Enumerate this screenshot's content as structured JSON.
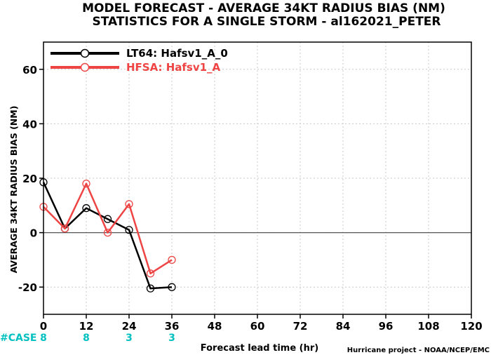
{
  "chart_data": {
    "type": "line",
    "title_line1": "MODEL FORECAST - AVERAGE 34KT RADIUS BIAS (NM)",
    "title_line2": "STATISTICS FOR A SINGLE STORM - al162021_PETER",
    "xlabel": "Forecast lead time (hr)",
    "ylabel": "AVERAGE 34KT RADIUS BIAS (NM)",
    "credit": "Hurricane project - NOAA/NCEP/EMC",
    "xlim": [
      0,
      120
    ],
    "ylim": [
      -30,
      70
    ],
    "xticks": [
      0,
      12,
      24,
      36,
      48,
      60,
      72,
      84,
      96,
      108,
      120
    ],
    "yticks": [
      -20,
      0,
      20,
      40,
      60
    ],
    "grid": true,
    "zero_line": true,
    "legend_position": "top-left",
    "case_label": "#CASE",
    "case_counts": [
      {
        "x": 0,
        "n": "8"
      },
      {
        "x": 12,
        "n": "8"
      },
      {
        "x": 24,
        "n": "3"
      },
      {
        "x": 36,
        "n": "3"
      }
    ],
    "series": [
      {
        "name": "LT64: Hafsv1_A_0",
        "color": "#000000",
        "x": [
          0,
          6,
          12,
          18,
          24,
          30,
          36
        ],
        "y": [
          18.5,
          1.5,
          9,
          5,
          1,
          -20.5,
          -20
        ]
      },
      {
        "name": "HFSA: Hafsv1_A",
        "color": "#ee4444",
        "x": [
          0,
          6,
          12,
          18,
          24,
          30,
          36
        ],
        "y": [
          9.5,
          1.5,
          18,
          0,
          10.5,
          -15,
          -10
        ]
      }
    ],
    "case_color": "#00c0c0"
  }
}
